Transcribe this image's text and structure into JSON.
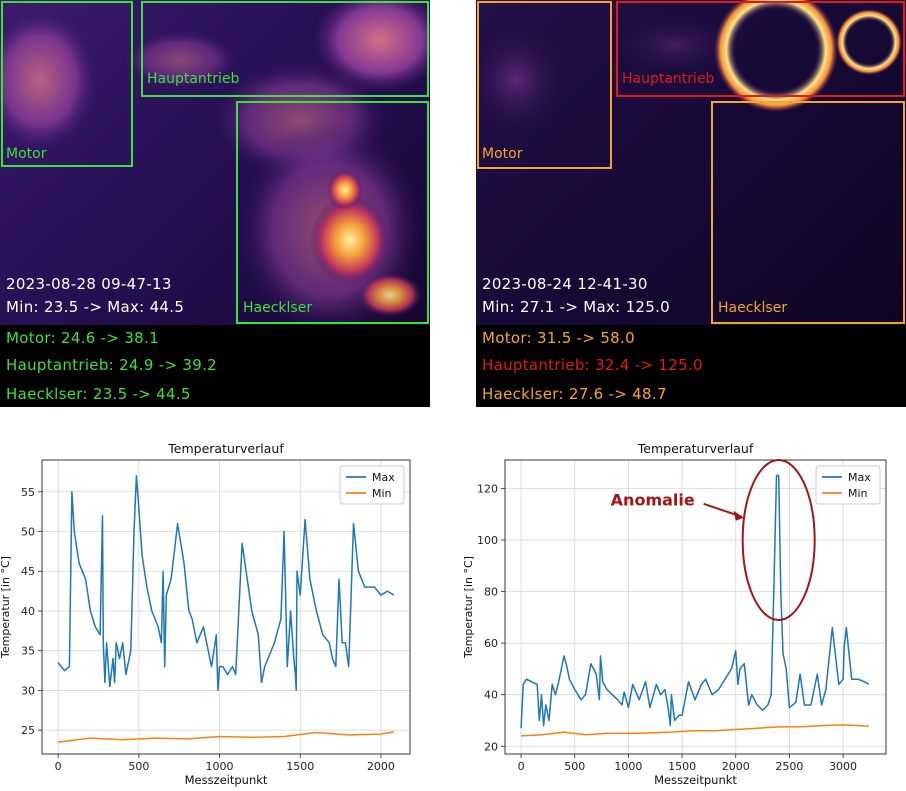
{
  "panels": [
    {
      "timestamp": "2023-08-28 09-47-13",
      "minmax": "Min: 23.5 -> Max: 44.5",
      "regions": [
        {
          "name": "Motor",
          "line": "Motor: 24.6 -> 38.1",
          "color": "#3ee03a"
        },
        {
          "name": "Hauptantrieb",
          "line": "Hauptantrieb: 24.9 -> 39.2",
          "color": "#3ee03a"
        },
        {
          "name": "Haecklser",
          "line": "Haecklser: 23.5 -> 44.5",
          "color": "#3ee03a"
        }
      ]
    },
    {
      "timestamp": "2023-08-24 12-41-30",
      "minmax": "Min: 27.1 -> Max: 125.0",
      "regions": [
        {
          "name": "Motor",
          "line": "Motor: 31.5 -> 58.0",
          "color": "#f5a62a"
        },
        {
          "name": "Hauptantrieb",
          "line": "Hauptantrieb: 32.4 -> 125.0",
          "color": "#e01b1b"
        },
        {
          "name": "Haecklser",
          "line": "Haecklser: 27.6 -> 48.7",
          "color": "#f5a62a"
        }
      ]
    }
  ],
  "chart_data": [
    {
      "type": "line",
      "title": "Temperaturverlauf",
      "xlabel": "Messzeitpunkt",
      "ylabel": "Temperatur [in °C]",
      "xlim": [
        -100,
        2180
      ],
      "ylim": [
        22,
        59
      ],
      "xticks": [
        0,
        500,
        1000,
        1500,
        2000
      ],
      "yticks": [
        25,
        30,
        35,
        40,
        45,
        50,
        55
      ],
      "grid": true,
      "legend": "top-right",
      "series": [
        {
          "name": "Max",
          "color": "#1f77b4",
          "x": [
            0,
            40,
            70,
            85,
            100,
            130,
            170,
            200,
            230,
            260,
            275,
            280,
            290,
            300,
            320,
            340,
            350,
            360,
            370,
            380,
            400,
            420,
            450,
            470,
            485,
            500,
            520,
            550,
            580,
            620,
            640,
            650,
            660,
            670,
            700,
            740,
            780,
            810,
            830,
            860,
            900,
            950,
            980,
            990,
            1000,
            1020,
            1050,
            1080,
            1100,
            1140,
            1200,
            1240,
            1260,
            1280,
            1300,
            1340,
            1380,
            1400,
            1420,
            1440,
            1460,
            1470,
            1475,
            1480,
            1500,
            1530,
            1560,
            1600,
            1640,
            1680,
            1700,
            1720,
            1740,
            1760,
            1780,
            1800,
            1830,
            1860,
            1880,
            1900,
            1920,
            1960,
            2000,
            2040,
            2080
          ],
          "y": [
            33.5,
            32.5,
            33,
            55,
            50,
            46,
            44,
            40,
            38,
            37,
            52,
            36,
            31,
            36,
            30.5,
            34,
            31,
            36,
            35,
            34,
            36,
            32,
            35,
            50,
            57,
            53,
            47,
            43,
            40,
            38,
            36,
            45,
            33,
            42,
            44,
            51,
            46,
            40,
            39,
            36,
            38,
            33,
            37,
            30,
            33,
            33,
            32,
            33,
            32,
            48.5,
            40,
            37,
            31,
            33,
            34,
            36,
            39,
            50,
            33,
            40,
            34,
            32,
            30,
            45,
            42,
            51.5,
            44,
            40,
            37,
            36,
            34,
            33,
            44,
            36,
            36,
            33,
            51,
            45,
            44,
            43,
            43,
            43,
            42,
            42.5,
            42
          ]
        },
        {
          "name": "Min",
          "color": "#ff7f0e",
          "x": [
            0,
            200,
            400,
            600,
            800,
            1000,
            1200,
            1400,
            1600,
            1800,
            2000,
            2080
          ],
          "y": [
            23.5,
            24,
            23.8,
            24,
            23.9,
            24.2,
            24.1,
            24.2,
            24.7,
            24.4,
            24.5,
            24.8
          ]
        }
      ]
    },
    {
      "type": "line",
      "title": "Temperaturverlauf",
      "xlabel": "Messzeitpunkt",
      "ylabel": "Temperatur [in °C]",
      "xlim": [
        -150,
        3400
      ],
      "ylim": [
        17,
        131
      ],
      "xticks": [
        0,
        500,
        1000,
        1500,
        2000,
        2500,
        3000
      ],
      "yticks": [
        20,
        40,
        60,
        80,
        100,
        120
      ],
      "grid": true,
      "legend": "top-right",
      "annotation": "Anomalie",
      "series": [
        {
          "name": "Max",
          "color": "#1f77b4",
          "x": [
            0,
            20,
            50,
            100,
            150,
            170,
            190,
            210,
            230,
            260,
            290,
            320,
            350,
            400,
            420,
            450,
            500,
            560,
            600,
            650,
            700,
            730,
            740,
            760,
            800,
            850,
            900,
            940,
            960,
            1000,
            1040,
            1100,
            1160,
            1200,
            1260,
            1300,
            1340,
            1370,
            1390,
            1400,
            1430,
            1470,
            1500,
            1560,
            1620,
            1680,
            1720,
            1740,
            1780,
            1840,
            1900,
            1960,
            2000,
            2020,
            2040,
            2080,
            2120,
            2150,
            2200,
            2250,
            2300,
            2330,
            2360,
            2380,
            2400,
            2420,
            2440,
            2470,
            2500,
            2560,
            2600,
            2640,
            2700,
            2760,
            2800,
            2840,
            2900,
            2960,
            3000,
            3010,
            3030,
            3080,
            3140,
            3200,
            3240
          ],
          "y": [
            27,
            44,
            46,
            45,
            44,
            30,
            40,
            28,
            36,
            30,
            44,
            40,
            45,
            55,
            52,
            46,
            42,
            38,
            40,
            52,
            48,
            38,
            55,
            45,
            42,
            40,
            38,
            36,
            41,
            35,
            44,
            38,
            45,
            35,
            44,
            40,
            42,
            35,
            28,
            40,
            30,
            32,
            32,
            45,
            38,
            44,
            46,
            44,
            40,
            42,
            46,
            50,
            57,
            44,
            50,
            52,
            36,
            40,
            36,
            34,
            36,
            40,
            90,
            125,
            125,
            80,
            56,
            50,
            35,
            37,
            48,
            36,
            36,
            48,
            36,
            42,
            66,
            44,
            46,
            58,
            66,
            46,
            46,
            45,
            44
          ]
        },
        {
          "name": "Min",
          "color": "#ff7f0e",
          "x": [
            0,
            200,
            400,
            600,
            800,
            1000,
            1200,
            1400,
            1600,
            1800,
            2000,
            2200,
            2400,
            2600,
            2800,
            3000,
            3240
          ],
          "y": [
            24,
            24.5,
            25.5,
            24.5,
            25,
            25,
            25.2,
            25.5,
            26,
            26,
            26.5,
            27,
            27.5,
            27.5,
            28,
            28.3,
            27.8
          ]
        }
      ]
    }
  ]
}
